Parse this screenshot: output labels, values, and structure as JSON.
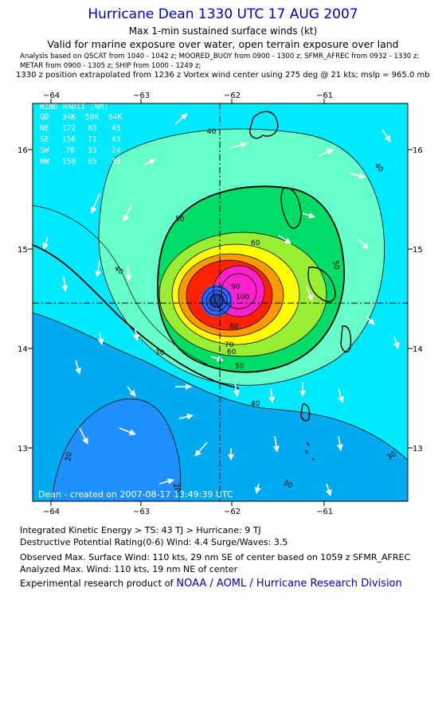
{
  "header": {
    "title": "Hurricane Dean 1330 UTC 17 AUG 2007",
    "subtitle": "Max 1-min sustained surface winds (kt)",
    "valid": "Valid for marine exposure over water, open terrain exposure over land",
    "analysis_line1": "Analysis based on  QSCAT from 1040 - 1042 z;  MOORED_BUOY from 0900 - 1300 z;  SFMR_AFREC from 0932 - 1330 z;",
    "analysis_line2": "METAR from 0900 - 1305 z;  SHIP from 1000 - 1249 z;",
    "position_note": "1330 z position extrapolated from 1236 z Vortex wind center using 275 deg @ 21 kts; mslp = 965.0 mb"
  },
  "map": {
    "x_ticks": [
      "−64",
      "−63",
      "−62",
      "−61"
    ],
    "y_ticks": [
      "16",
      "15",
      "14",
      "13"
    ],
    "wind_radii": {
      "title": "WIND RADII (NM)",
      "header": [
        "QD",
        "34K",
        "50K",
        "64K"
      ],
      "rows": [
        [
          "NE",
          "172",
          "83",
          "43"
        ],
        [
          "SE",
          "156",
          "71",
          "43"
        ],
        [
          "SW",
          "78",
          "33",
          "24"
        ],
        [
          "NW",
          "150",
          "65",
          "33"
        ]
      ]
    },
    "contour_labels": [
      "20",
      "30",
      "40",
      "50",
      "60",
      "70",
      "80",
      "90",
      "100"
    ],
    "created": "Dean - created on 2007-08-17 13:49:39 UTC",
    "colors": {
      "sea": "#00eaff",
      "w20": "#1e90ff",
      "w30": "#00aaee",
      "w40": "#66ffcc",
      "w50": "#00dd66",
      "w60": "#99ee33",
      "w70": "#ffff00",
      "w80": "#ff9900",
      "w90": "#ff2200",
      "w100": "#ff22cc",
      "eye": "#3366ff"
    }
  },
  "footer": {
    "ike": "Integrated Kinetic Energy > TS: 43 TJ   > Hurricane: 9 TJ",
    "dpr": "Destructive Potential Rating(0-6)   Wind: 4.4 Surge/Waves: 3.5",
    "observed": "Observed Max. Surface Wind: 110 kts, 29 nm SE of center based on 1059 z SFMR_AFREC",
    "analyzed": "Analyzed Max. Wind: 110 kts, 19 nm NE of center",
    "credit_prefix": "Experimental research product of ",
    "credit_link": "NOAA / AOML / Hurricane Research Division"
  }
}
